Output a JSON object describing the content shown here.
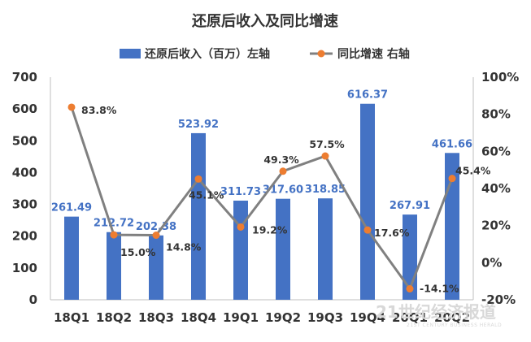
{
  "chart_data": {
    "type": "bar",
    "title": "还原后收入及同比增速",
    "categories": [
      "18Q1",
      "18Q2",
      "18Q3",
      "18Q4",
      "19Q1",
      "19Q2",
      "19Q3",
      "19Q4",
      "20Q1",
      "20Q2"
    ],
    "series": [
      {
        "name": "还原后收入（百万）左轴",
        "type": "bar",
        "axis": "left",
        "color": "#4472c4",
        "values": [
          261.49,
          212.72,
          202.38,
          523.92,
          311.73,
          317.6,
          318.85,
          616.37,
          267.91,
          461.66
        ],
        "labels": [
          "261.49",
          "212.72",
          "202.38",
          "523.92",
          "311.73",
          "317.60",
          "318.85",
          "616.37",
          "267.91",
          "461.66"
        ]
      },
      {
        "name": "同比增速 右轴",
        "type": "line",
        "axis": "right",
        "color": "#808080",
        "marker_color": "#ed7d31",
        "values": [
          83.8,
          15.0,
          14.8,
          45.1,
          19.2,
          49.3,
          57.5,
          17.6,
          -14.1,
          45.4
        ],
        "labels": [
          "83.8%",
          "15.0%",
          "14.8%",
          "45.1%",
          "19.2%",
          "49.3%",
          "57.5%",
          "17.6%",
          "-14.1%",
          "45.4%"
        ]
      }
    ],
    "left_axis": {
      "ylim": [
        0,
        700
      ],
      "ticks": [
        "0",
        "100",
        "200",
        "300",
        "400",
        "500",
        "600",
        "700"
      ]
    },
    "right_axis": {
      "ylim": [
        -20,
        100
      ],
      "ticks": [
        "-20%",
        "0%",
        "20%",
        "40%",
        "60%",
        "80%",
        "100%"
      ]
    },
    "legend_position": "top",
    "grid": false
  },
  "watermark": {
    "text": "21世纪经济报道",
    "sub": "21ST CENTURY BUSINESS HERALD"
  }
}
